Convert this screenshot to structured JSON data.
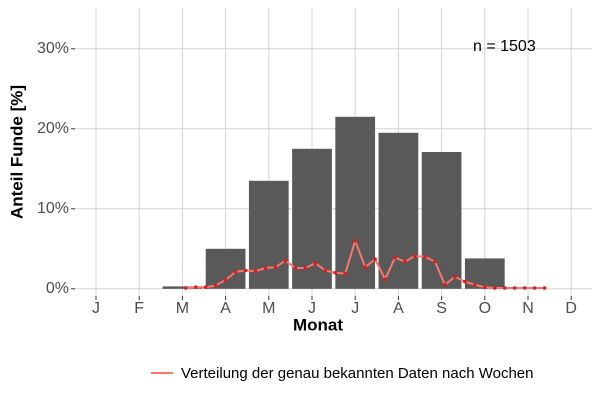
{
  "chart_data": {
    "type": "bar",
    "x_label": "Monat",
    "y_label": "Anteil Funde [%]",
    "annotation": "n = 1503",
    "categories": [
      "J",
      "F",
      "M",
      "A",
      "M",
      "J",
      "J",
      "A",
      "S",
      "O",
      "N",
      "D"
    ],
    "values": [
      0,
      0,
      0.3,
      5,
      13.5,
      17.5,
      21.5,
      19.5,
      17.1,
      3.8,
      0,
      0
    ],
    "color": "#595959",
    "ylim": [
      -0.9,
      35.1
    ],
    "yticks": [
      {
        "value": 0,
        "label": "0%"
      },
      {
        "value": 10,
        "label": "10%"
      },
      {
        "value": 20,
        "label": "20%"
      },
      {
        "value": 30,
        "label": "30%"
      }
    ],
    "grid": true,
    "line": {
      "type": "line",
      "name": "Verteilung der genau bekannten Daten nach Wochen",
      "color": "#f8766d",
      "point_color": "#e31a1c",
      "x": [
        10,
        11,
        12,
        13,
        14,
        15,
        16,
        17,
        18,
        19,
        20,
        21,
        22,
        23,
        24,
        25,
        26,
        27,
        28,
        29,
        30,
        31,
        32,
        33,
        34,
        35,
        36,
        37,
        38,
        39,
        40,
        41,
        42,
        43,
        44,
        45,
        46
      ],
      "values": [
        0.1,
        0.2,
        0.2,
        0.4,
        1.1,
        2.1,
        2.3,
        2.2,
        2.6,
        2.7,
        3.5,
        2.6,
        2.6,
        3.2,
        2.3,
        2.0,
        1.9,
        6.0,
        2.7,
        3.7,
        1.2,
        3.9,
        3.4,
        4.1,
        4.0,
        3.4,
        0.5,
        1.5,
        0.9,
        0.5,
        0.2,
        0.1,
        0.1,
        0.1,
        0.1,
        0.1,
        0.1
      ]
    },
    "legend": "bottom"
  }
}
